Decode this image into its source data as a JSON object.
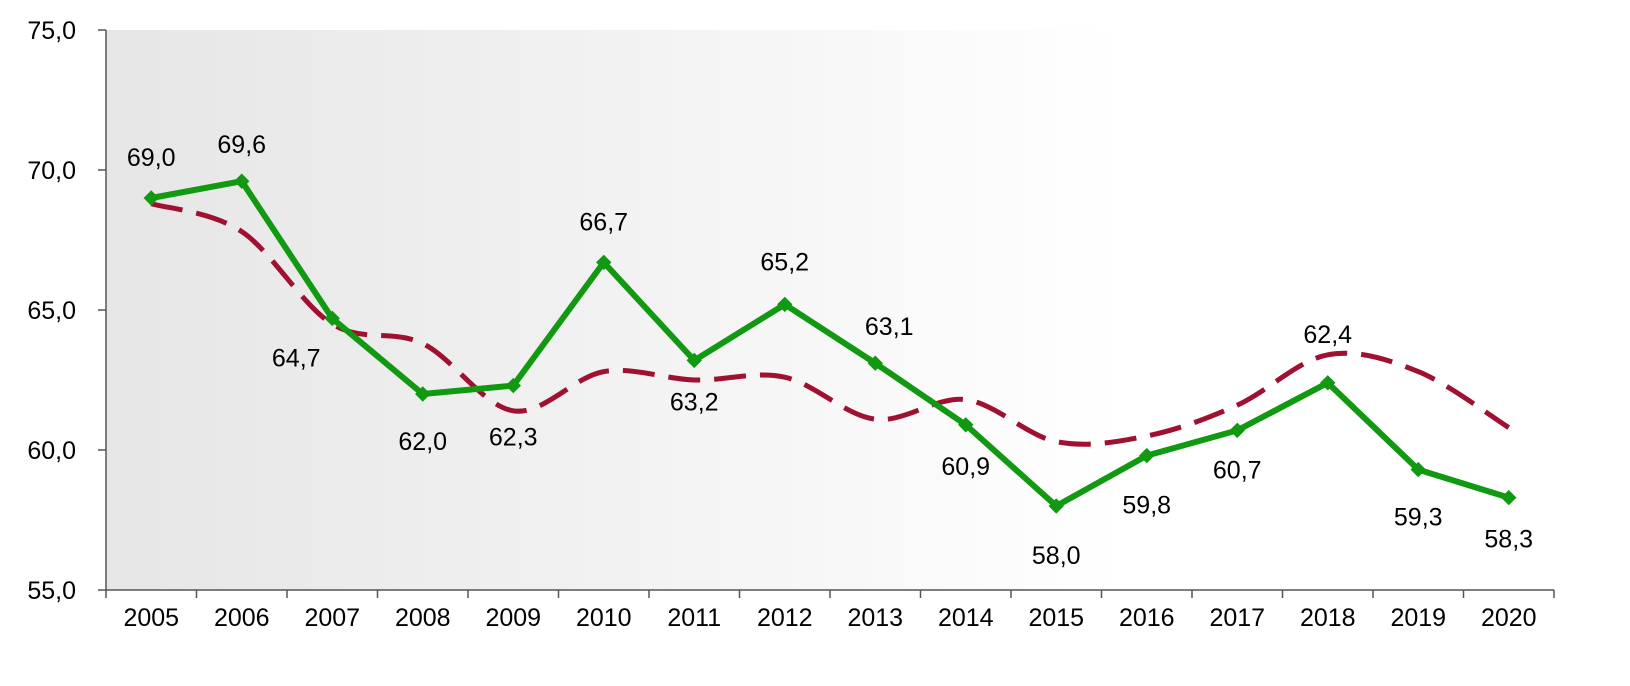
{
  "chart_data": {
    "type": "line",
    "title": "",
    "xlabel": "",
    "ylabel": "",
    "categories": [
      "2005",
      "2006",
      "2007",
      "2008",
      "2009",
      "2010",
      "2011",
      "2012",
      "2013",
      "2014",
      "2015",
      "2016",
      "2017",
      "2018",
      "2019",
      "2020"
    ],
    "ylim": [
      55,
      75
    ],
    "yticks": [
      "55,0",
      "60,0",
      "65,0",
      "70,0",
      "75,0"
    ],
    "ytick_values": [
      55,
      60,
      65,
      70,
      75
    ],
    "grid": false,
    "legend": "none",
    "series": [
      {
        "style": "solid-with-markers",
        "color": "#119911",
        "values": [
          69.0,
          69.6,
          64.7,
          62.0,
          62.3,
          66.7,
          63.2,
          65.2,
          63.1,
          60.9,
          58.0,
          59.8,
          60.7,
          62.4,
          59.3,
          58.3
        ],
        "labels": [
          "69,0",
          "69,6",
          "64,7",
          "62,0",
          "62,3",
          "66,7",
          "63,2",
          "65,2",
          "63,1",
          "60,9",
          "58,0",
          "59,8",
          "60,7",
          "62,4",
          "59,3",
          "58,3"
        ]
      },
      {
        "style": "dashed-smooth",
        "color": "#a01030",
        "values": [
          68.8,
          67.8,
          64.5,
          63.8,
          61.4,
          62.8,
          62.5,
          62.6,
          61.1,
          61.8,
          60.3,
          60.5,
          61.6,
          63.4,
          62.8,
          60.8
        ]
      }
    ]
  }
}
